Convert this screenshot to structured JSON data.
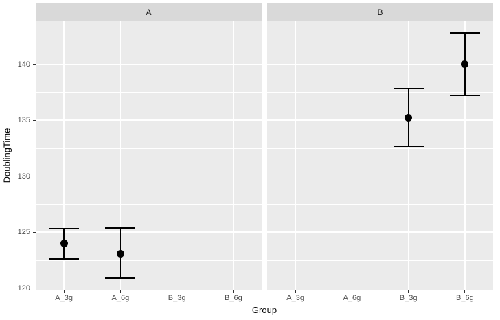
{
  "chart_data": {
    "type": "scatter",
    "title": "",
    "xlabel": "Group",
    "ylabel": "DoublingTime",
    "categories": [
      "A_3g",
      "A_6g",
      "B_3g",
      "B_6g"
    ],
    "ylim": [
      119.8,
      143.9
    ],
    "yticks": [
      120,
      125,
      130,
      135,
      140
    ],
    "yminor": [
      122.5,
      127.5,
      132.5,
      137.5,
      142.5
    ],
    "grid": true,
    "legend": "none",
    "error_bars": true,
    "facets": [
      {
        "label": "A",
        "points": [
          {
            "x": "A_3g",
            "y": 124.0,
            "ymin": 122.6,
            "ymax": 125.3
          },
          {
            "x": "A_6g",
            "y": 123.1,
            "ymin": 120.9,
            "ymax": 125.4
          }
        ]
      },
      {
        "label": "B",
        "points": [
          {
            "x": "B_3g",
            "y": 135.2,
            "ymin": 132.7,
            "ymax": 137.8
          },
          {
            "x": "B_6g",
            "y": 140.0,
            "ymin": 137.2,
            "ymax": 142.8
          }
        ]
      }
    ]
  },
  "colors": {
    "panel_bg": "#EBEBEB",
    "strip_bg": "#D9D9D9",
    "grid": "#FFFFFF",
    "point": "#000000",
    "error_bar": "#000000",
    "axis_text": "#4D4D4D",
    "strip_text": "#1A1A1A",
    "title_text": "#000000",
    "tick": "#333333",
    "figure_bg": "#FFFFFF"
  }
}
